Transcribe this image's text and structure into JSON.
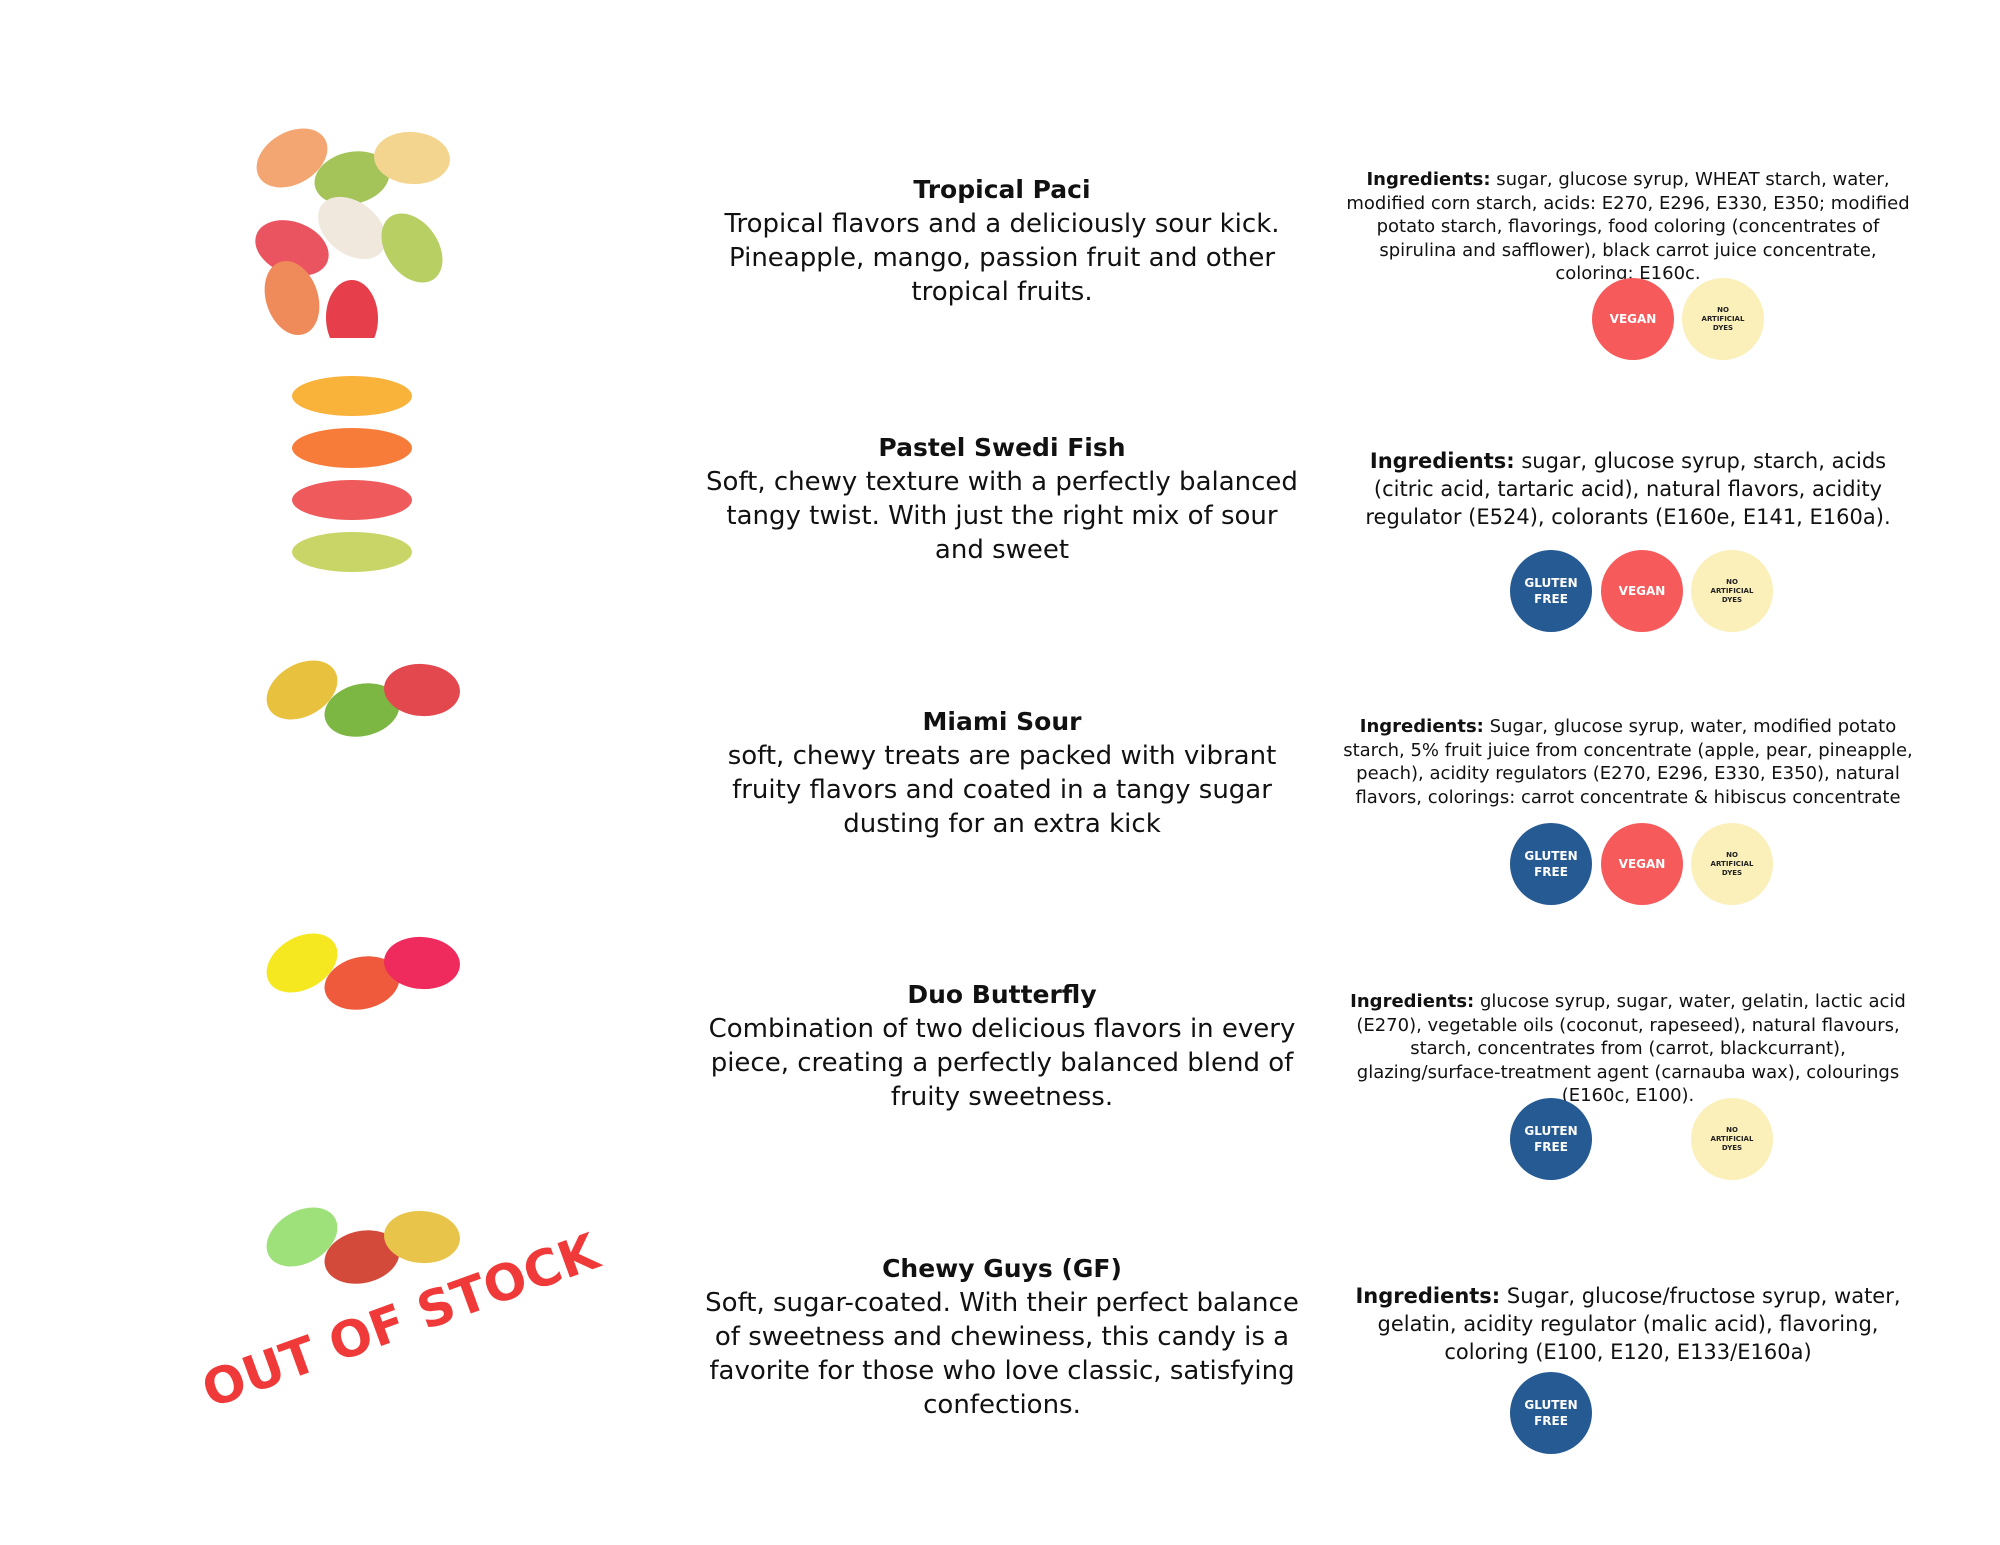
{
  "products": [
    {
      "name": "Tropical Paci",
      "description": "Tropical flavors and a deliciously sour kick. Pineapple, mango, passion fruit and other tropical fruits.",
      "ingredients_label": "Ingredients:",
      "ingredients": "sugar, glucose syrup, WHEAT starch, water, modified corn starch, acids: E270, E296, E330, E350; modified potato starch, flavorings, food coloring (concentrates of spirulina and safflower), black carrot juice concentrate, coloring: E160c.",
      "badges": [
        {
          "text": "VEGAN",
          "color": "#f65a5b"
        },
        {
          "text": "NO ARTIFICIAL DYES",
          "color": "#fbefba"
        }
      ]
    },
    {
      "name": "Pastel Swedi Fish",
      "description": "Soft, chewy texture with a perfectly balanced tangy twist. With just the right mix of sour and sweet",
      "ingredients_label": "Ingredients:",
      "ingredients": "sugar, glucose syrup, starch, acids (citric acid, tartaric acid), natural flavors, acidity regulator (E524), colorants (E160e, E141, E160a).",
      "badges": [
        {
          "text": "GLUTEN FREE",
          "color": "#265a93"
        },
        {
          "text": "VEGAN",
          "color": "#f65a5b"
        },
        {
          "text": "NO ARTIFICIAL DYES",
          "color": "#fbefba"
        }
      ]
    },
    {
      "name": "Miami Sour",
      "description": "soft, chewy treats are packed with vibrant fruity flavors and coated in a tangy sugar dusting for an extra kick",
      "ingredients_label": "Ingredients:",
      "ingredients": "Sugar, glucose syrup, water, modified potato starch, 5% fruit juice from concentrate (apple, pear, pineapple, peach), acidity regulators (E270, E296, E330, E350), natural flavors, colorings: carrot concentrate & hibiscus concentrate",
      "badges": [
        {
          "text": "GLUTEN FREE",
          "color": "#265a93"
        },
        {
          "text": "VEGAN",
          "color": "#f65a5b"
        },
        {
          "text": "NO ARTIFICIAL DYES",
          "color": "#fbefba"
        }
      ]
    },
    {
      "name": "Duo Butterfly",
      "description": "Combination of two delicious flavors in every piece, creating a perfectly balanced blend of fruity sweetness.",
      "ingredients_label": "Ingredients:",
      "ingredients": "glucose syrup, sugar, water, gelatin, lactic acid (E270), vegetable oils (coconut, rapeseed), natural flavours, starch, concentrates from (carrot, blackcurrant), glazing/surface-treatment agent (carnauba wax), colourings (E160c, E100).",
      "badges": [
        {
          "text": "GLUTEN FREE",
          "color": "#265a93"
        },
        {
          "text": "NO ARTIFICIAL DYES",
          "color": "#fbefba"
        }
      ]
    },
    {
      "name": "Chewy Guys (GF)",
      "description": "Soft, sugar-coated. With their perfect balance of sweetness and chewiness, this candy is a favorite for those who love classic, satisfying confections.",
      "ingredients_label": "Ingredients:",
      "ingredients": "Sugar, glucose/fructose syrup, water, gelatin, acidity regulator (malic acid), flavoring, coloring (E100, E120, E133/E160a)",
      "badges": [
        {
          "text": "GLUTEN FREE",
          "color": "#265a93"
        }
      ],
      "stock_label": "OUT OF STOCK"
    }
  ]
}
